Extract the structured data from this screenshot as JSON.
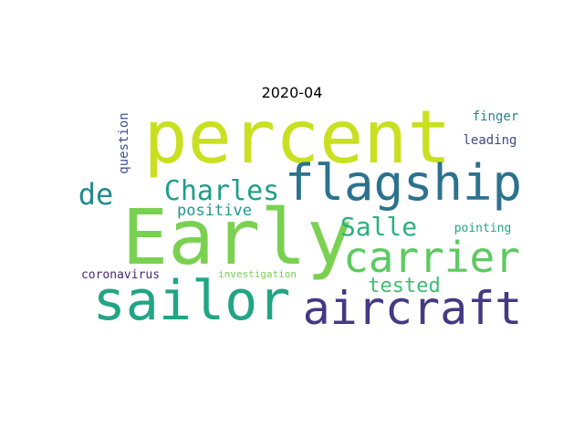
{
  "title": "2020-04",
  "words": [
    {
      "text": "percent",
      "color": "#c8e020"
    },
    {
      "text": "Early",
      "color": "#7ad151"
    },
    {
      "text": "flagship",
      "color": "#2c728e"
    },
    {
      "text": "sailor",
      "color": "#21a585"
    },
    {
      "text": "aircraft",
      "color": "#443983"
    },
    {
      "text": "carrier",
      "color": "#5ec962"
    },
    {
      "text": "Charles",
      "color": "#1f9e89"
    },
    {
      "text": "de",
      "color": "#238a8d"
    },
    {
      "text": "Salle",
      "color": "#2ab07f"
    },
    {
      "text": "tested",
      "color": "#3fbc73"
    },
    {
      "text": "positive",
      "color": "#1f988b"
    },
    {
      "text": "question",
      "color": "#3b528b"
    },
    {
      "text": "finger",
      "color": "#25858e"
    },
    {
      "text": "leading",
      "color": "#3e4a89"
    },
    {
      "text": "pointing",
      "color": "#22a884"
    },
    {
      "text": "coronavirus",
      "color": "#482878"
    },
    {
      "text": "investigation",
      "color": "#75d054"
    }
  ]
}
